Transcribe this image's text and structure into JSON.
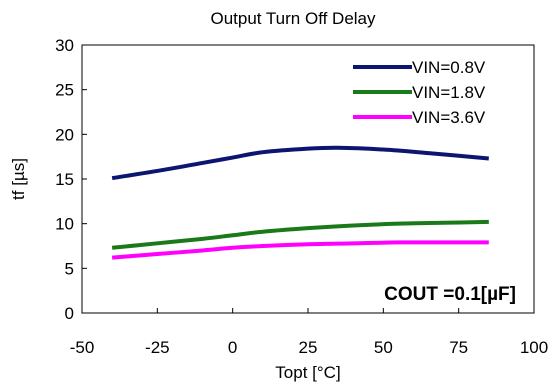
{
  "chart_data": {
    "type": "line",
    "title": "Output Turn Off Delay",
    "xlabel": "Topt [°C]",
    "ylabel": "tf [µs]",
    "xlim": [
      -50,
      100
    ],
    "ylim": [
      0,
      30
    ],
    "xticks": [
      "-50",
      "-25",
      "0",
      "25",
      "50",
      "75",
      "100"
    ],
    "yticks": [
      "0",
      "5",
      "10",
      "15",
      "20",
      "25",
      "30"
    ],
    "xtick_values": [
      -50,
      -25,
      0,
      25,
      50,
      75,
      100
    ],
    "ytick_values": [
      0,
      5,
      10,
      15,
      20,
      25,
      30
    ],
    "grid": false,
    "legend_position": "top-right",
    "annotation": "COUT =0.1[µF]",
    "series": [
      {
        "name": "VIN=0.8V",
        "color": "#0c1670",
        "x": [
          -40,
          -25,
          -10,
          0,
          10,
          25,
          35,
          50,
          65,
          85
        ],
        "y": [
          15.1,
          15.9,
          16.8,
          17.4,
          18.0,
          18.4,
          18.5,
          18.3,
          17.9,
          17.3
        ]
      },
      {
        "name": "VIN=1.8V",
        "color": "#1a7a1a",
        "x": [
          -40,
          -25,
          -10,
          0,
          10,
          25,
          40,
          55,
          70,
          85
        ],
        "y": [
          7.3,
          7.8,
          8.3,
          8.7,
          9.1,
          9.5,
          9.8,
          10.0,
          10.1,
          10.2
        ]
      },
      {
        "name": "VIN=3.6V",
        "color": "#ff00ff",
        "x": [
          -40,
          -25,
          -10,
          0,
          10,
          25,
          40,
          55,
          70,
          85
        ],
        "y": [
          6.2,
          6.6,
          7.0,
          7.3,
          7.5,
          7.7,
          7.8,
          7.9,
          7.9,
          7.9
        ]
      }
    ]
  }
}
